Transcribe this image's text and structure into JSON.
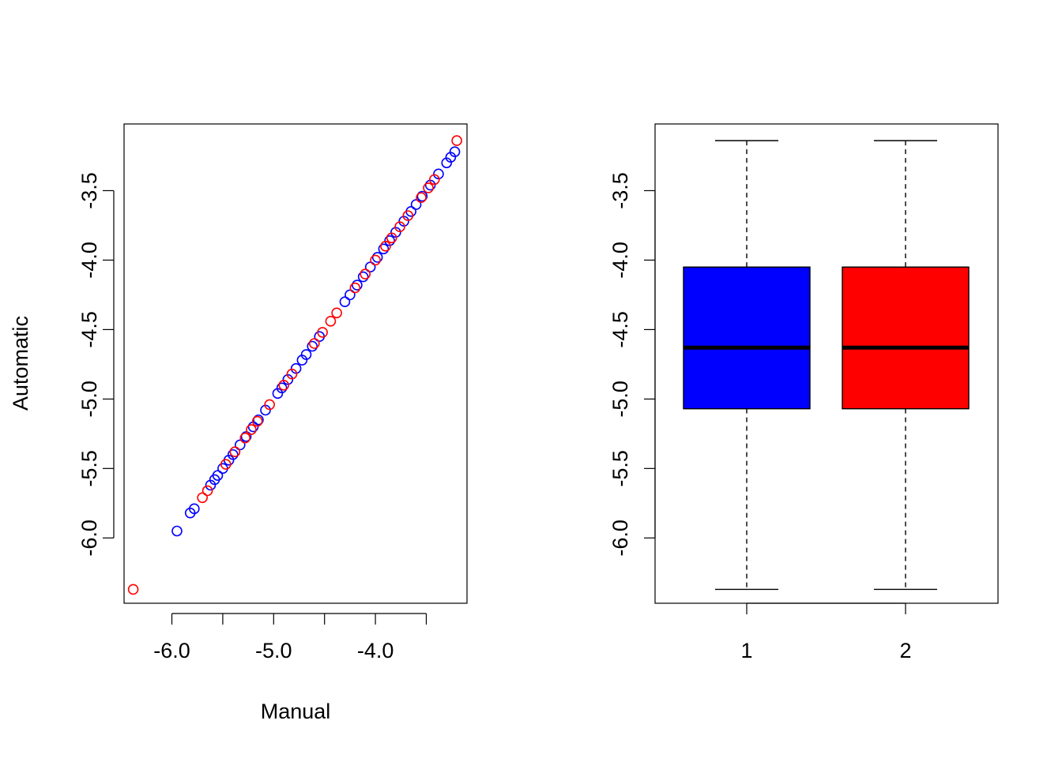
{
  "chart_data": [
    {
      "type": "scatter",
      "xlabel": "Manual",
      "ylabel": "Automatic",
      "title": "",
      "xlim": [
        -6.47,
        -3.1
      ],
      "ylim": [
        -6.47,
        -3.02
      ],
      "x_ticks": [
        -6.0,
        -5.5,
        -5.0,
        -4.5,
        -4.0,
        -3.5
      ],
      "x_tick_labels": [
        "-6.0",
        "",
        "-5.0",
        "",
        "-4.0",
        ""
      ],
      "y_ticks": [
        -6.0,
        -5.5,
        -5.0,
        -4.5,
        -4.0,
        -3.5
      ],
      "y_tick_labels": [
        "-6.0",
        "-5.5",
        "-5.0",
        "-4.5",
        "-4.0",
        "-3.5"
      ],
      "grid": false,
      "series": [
        {
          "color": "#0000ff",
          "x": [
            -5.95,
            -5.82,
            -5.78,
            -5.62,
            -5.58,
            -5.55,
            -5.5,
            -5.44,
            -5.4,
            -5.33,
            -5.27,
            -5.2,
            -5.15,
            -5.08,
            -4.96,
            -4.92,
            -4.86,
            -4.78,
            -4.72,
            -4.68,
            -4.62,
            -4.55,
            -4.3,
            -4.25,
            -4.18,
            -4.12,
            -4.05,
            -3.98,
            -3.92,
            -3.86,
            -3.8,
            -3.72,
            -3.65,
            -3.6,
            -3.54,
            -3.46,
            -3.38,
            -3.3,
            -3.26,
            -3.22
          ],
          "y": [
            -5.95,
            -5.82,
            -5.79,
            -5.62,
            -5.58,
            -5.55,
            -5.5,
            -5.44,
            -5.4,
            -5.33,
            -5.27,
            -5.2,
            -5.15,
            -5.08,
            -4.96,
            -4.92,
            -4.86,
            -4.78,
            -4.72,
            -4.68,
            -4.62,
            -4.55,
            -4.3,
            -4.25,
            -4.18,
            -4.12,
            -4.05,
            -3.98,
            -3.92,
            -3.86,
            -3.8,
            -3.72,
            -3.65,
            -3.6,
            -3.54,
            -3.46,
            -3.38,
            -3.3,
            -3.26,
            -3.22
          ]
        },
        {
          "color": "#ff0000",
          "x": [
            -6.38,
            -5.7,
            -5.65,
            -5.47,
            -5.38,
            -5.28,
            -5.22,
            -5.16,
            -5.04,
            -4.9,
            -4.82,
            -4.6,
            -4.52,
            -4.44,
            -4.38,
            -4.2,
            -4.1,
            -4.0,
            -3.9,
            -3.84,
            -3.76,
            -3.68,
            -3.55,
            -3.48,
            -3.42,
            -3.2
          ],
          "y": [
            -6.37,
            -5.71,
            -5.66,
            -5.47,
            -5.38,
            -5.28,
            -5.22,
            -5.16,
            -5.04,
            -4.9,
            -4.82,
            -4.6,
            -4.52,
            -4.44,
            -4.38,
            -4.2,
            -4.1,
            -4.0,
            -3.9,
            -3.84,
            -3.76,
            -3.68,
            -3.55,
            -3.48,
            -3.42,
            -3.14
          ]
        }
      ]
    },
    {
      "type": "box",
      "title": "",
      "xlabel": "",
      "ylabel": "",
      "categories": [
        "1",
        "2"
      ],
      "ylim": [
        -6.47,
        -3.02
      ],
      "y_ticks": [
        -6.0,
        -5.5,
        -5.0,
        -4.5,
        -4.0,
        -3.5
      ],
      "y_tick_labels": [
        "-6.0",
        "-5.5",
        "-5.0",
        "-4.5",
        "-4.0",
        "-3.5"
      ],
      "grid": false,
      "boxes": [
        {
          "color": "#0000ff",
          "min": -6.37,
          "q1": -5.07,
          "median": -4.63,
          "q3": -4.05,
          "max": -3.14
        },
        {
          "color": "#ff0000",
          "min": -6.37,
          "q1": -5.07,
          "median": -4.63,
          "q3": -4.05,
          "max": -3.14
        }
      ]
    }
  ]
}
